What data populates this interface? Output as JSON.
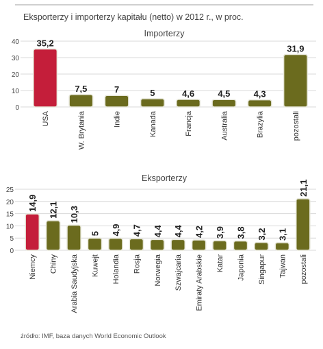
{
  "title": "Eksporterzy i importerzy kapitału (netto) w 2012 r., w proc.",
  "source": "źródło: IMF, baza danych World Economic Outlook",
  "colors": {
    "highlight": "#c41e3a",
    "bar": "#6b6b1e",
    "grid": "#d8d8d8"
  },
  "chart_data": [
    {
      "type": "bar",
      "title": "Importerzy",
      "categories": [
        "USA",
        "W. Brytania",
        "Indie",
        "Kanada",
        "Francja",
        "Australia",
        "Brazylia",
        "pozostali"
      ],
      "values": [
        35.2,
        7.5,
        7,
        5,
        4.6,
        4.5,
        4.3,
        31.9
      ],
      "value_labels": [
        "35,2",
        "7,5",
        "7",
        "5",
        "4,6",
        "4,5",
        "4,3",
        "31,9"
      ],
      "yticks": [
        "0",
        "10",
        "20",
        "30",
        "40"
      ],
      "ylim": [
        0,
        40
      ],
      "highlight_index": 0,
      "grid": true
    },
    {
      "type": "bar",
      "title": "Eksporterzy",
      "categories": [
        "Niemcy",
        "Chiny",
        "Arabia Saudyjska",
        "Kuwejt",
        "Holandia",
        "Rosja",
        "Norwegia",
        "Szwajcaria",
        "Emiraty Arabskie",
        "Katar",
        "Japonia",
        "Singapur",
        "Tajwan",
        "pozostali"
      ],
      "values": [
        14.9,
        12.1,
        10.3,
        5,
        4.9,
        4.7,
        4.4,
        4.4,
        4.2,
        3.9,
        3.8,
        3.2,
        3.1,
        21.1
      ],
      "value_labels": [
        "14,9",
        "12,1",
        "10,3",
        "5",
        "4,9",
        "4,7",
        "4,4",
        "4,4",
        "4,2",
        "3,9",
        "3,8",
        "3,2",
        "3,1",
        "21,1"
      ],
      "yticks": [
        "0",
        "5",
        "10",
        "15",
        "20",
        "25"
      ],
      "ylim": [
        0,
        25
      ],
      "highlight_index": 0,
      "grid": true
    }
  ]
}
